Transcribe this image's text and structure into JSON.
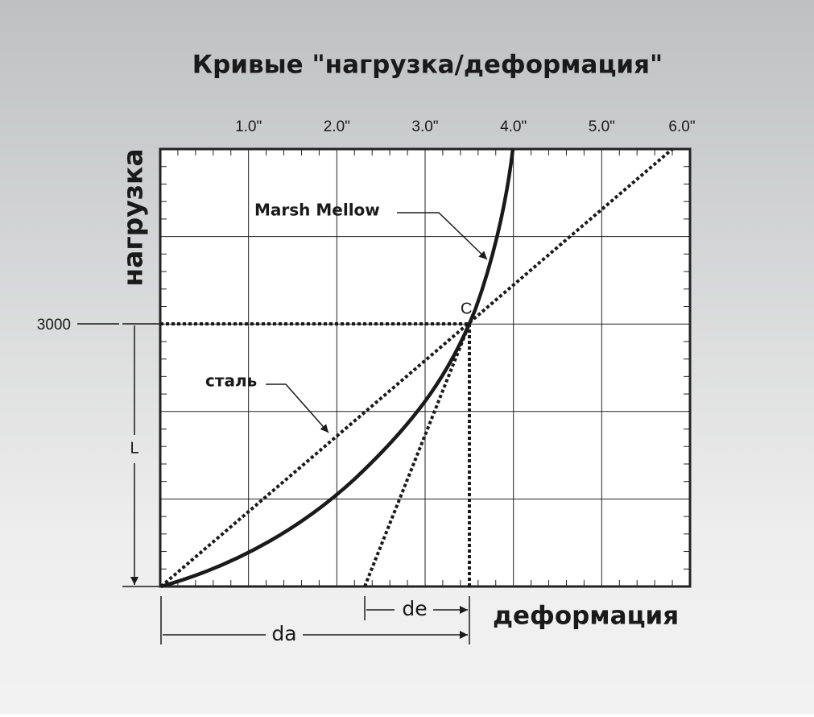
{
  "title": "Кривые \"нагрузка/деформация\"",
  "x_ticks": [
    "1.0\"",
    "2.0\"",
    "3.0\"",
    "4.0\"",
    "5.0\"",
    "6.0\""
  ],
  "y_axis_label": "нагрузка",
  "x_axis_label": "деформация",
  "y_marker": "3000",
  "point_label": "C",
  "curves": [
    "Marsh Mellow",
    "сталь"
  ],
  "dimensions": {
    "load": "L",
    "elastic": "de",
    "total": "da"
  }
}
